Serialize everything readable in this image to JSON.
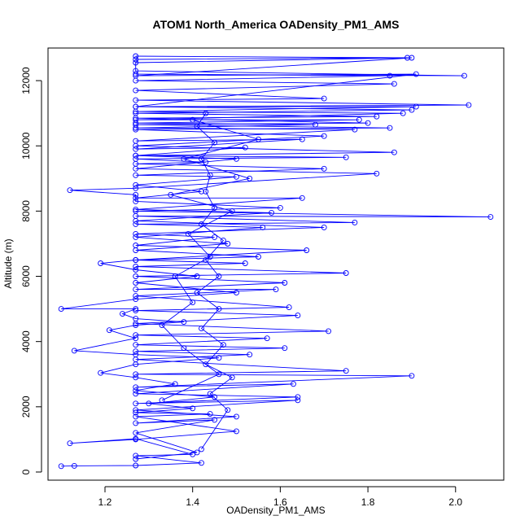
{
  "chart_data": {
    "type": "scatter",
    "title": "ATOM1 North_America OADensity_PM1_AMS",
    "xlabel": "OADensity_PM1_AMS",
    "ylabel": "Altitude (m)",
    "xlim": [
      1.07,
      2.11
    ],
    "ylim": [
      -250,
      13000
    ],
    "xticks": [
      "1.2",
      "1.4",
      "1.6",
      "1.8",
      "2.0"
    ],
    "xtick_values": [
      1.2,
      1.4,
      1.6,
      1.8,
      2.0
    ],
    "yticks": [
      "0",
      "2000",
      "4000",
      "6000",
      "8000",
      "10000",
      "12000"
    ],
    "ytick_values": [
      0,
      2000,
      4000,
      6000,
      8000,
      10000,
      12000
    ],
    "grid": false,
    "legend": "none",
    "color": "#0000ff",
    "marker": "open-circle",
    "connected": true,
    "series": [
      {
        "points": [
          [
            1.1,
            180
          ],
          [
            1.13,
            190
          ],
          [
            1.27,
            200
          ],
          [
            1.42,
            280
          ],
          [
            1.27,
            500
          ],
          [
            1.4,
            540
          ],
          [
            1.27,
            1020
          ],
          [
            1.12,
            880
          ],
          [
            1.27,
            1000
          ],
          [
            1.5,
            1250
          ],
          [
            1.27,
            1700
          ],
          [
            1.44,
            1780
          ],
          [
            1.27,
            1820
          ],
          [
            1.4,
            1950
          ],
          [
            1.3,
            2100
          ],
          [
            1.45,
            2300
          ],
          [
            1.27,
            2500
          ],
          [
            1.36,
            2700
          ],
          [
            1.27,
            2900
          ],
          [
            1.19,
            3040
          ],
          [
            1.27,
            3300
          ],
          [
            1.46,
            3500
          ],
          [
            1.27,
            3600
          ],
          [
            1.13,
            3720
          ],
          [
            1.27,
            4100
          ],
          [
            1.21,
            4350
          ],
          [
            1.27,
            4500
          ],
          [
            1.38,
            4600
          ],
          [
            1.27,
            4700
          ],
          [
            1.24,
            4850
          ],
          [
            1.27,
            5000
          ],
          [
            1.1,
            5000
          ],
          [
            1.27,
            5300
          ],
          [
            1.5,
            5500
          ],
          [
            1.27,
            5800
          ],
          [
            1.41,
            6000
          ],
          [
            1.27,
            6200
          ],
          [
            1.19,
            6400
          ],
          [
            1.27,
            6500
          ],
          [
            1.55,
            6600
          ],
          [
            1.27,
            6800
          ],
          [
            1.48,
            7000
          ],
          [
            1.27,
            7200
          ],
          [
            1.56,
            7500
          ],
          [
            1.27,
            7600
          ],
          [
            1.77,
            7650
          ],
          [
            1.27,
            7850
          ],
          [
            2.08,
            7820
          ],
          [
            1.27,
            8000
          ],
          [
            1.6,
            8100
          ],
          [
            1.27,
            8300
          ],
          [
            1.27,
            8500
          ],
          [
            1.12,
            8640
          ],
          [
            1.27,
            8700
          ],
          [
            1.82,
            9150
          ],
          [
            1.27,
            9300
          ],
          [
            1.5,
            9600
          ],
          [
            1.27,
            9700
          ],
          [
            1.86,
            9800
          ],
          [
            1.27,
            10000
          ],
          [
            1.7,
            10300
          ],
          [
            1.27,
            10500
          ],
          [
            1.85,
            10550
          ],
          [
            1.27,
            10650
          ],
          [
            1.8,
            10700
          ],
          [
            1.27,
            10850
          ],
          [
            1.82,
            10900
          ],
          [
            1.27,
            11000
          ],
          [
            1.9,
            11100
          ],
          [
            1.27,
            11200
          ],
          [
            2.03,
            11250
          ],
          [
            1.27,
            11400
          ],
          [
            1.7,
            11450
          ],
          [
            1.27,
            11700
          ],
          [
            1.86,
            11900
          ],
          [
            1.27,
            12000
          ],
          [
            1.85,
            12150
          ],
          [
            1.27,
            12200
          ],
          [
            2.02,
            12150
          ],
          [
            1.27,
            12300
          ],
          [
            1.27,
            12550
          ],
          [
            1.89,
            12700
          ],
          [
            1.27,
            12750
          ]
        ]
      },
      {
        "points": [
          [
            1.27,
            12650
          ],
          [
            1.9,
            12700
          ],
          [
            1.27,
            12150
          ],
          [
            1.91,
            12200
          ],
          [
            1.27,
            11200
          ],
          [
            1.91,
            11200
          ],
          [
            1.27,
            11050
          ],
          [
            1.88,
            11000
          ],
          [
            1.27,
            10800
          ],
          [
            1.78,
            10800
          ],
          [
            1.27,
            10700
          ],
          [
            1.68,
            10650
          ],
          [
            1.27,
            10550
          ],
          [
            1.77,
            10500
          ],
          [
            1.27,
            10150
          ],
          [
            1.65,
            10200
          ],
          [
            1.27,
            9900
          ],
          [
            1.52,
            9950
          ],
          [
            1.27,
            9700
          ],
          [
            1.75,
            9650
          ],
          [
            1.27,
            9600
          ],
          [
            1.43,
            9500
          ],
          [
            1.27,
            9450
          ],
          [
            1.7,
            9300
          ],
          [
            1.27,
            9100
          ],
          [
            1.5,
            9050
          ],
          [
            1.27,
            8800
          ],
          [
            1.42,
            8600
          ],
          [
            1.27,
            8400
          ],
          [
            1.65,
            8400
          ],
          [
            1.27,
            8050
          ],
          [
            1.58,
            7950
          ],
          [
            1.27,
            7700
          ],
          [
            1.7,
            7500
          ],
          [
            1.27,
            7300
          ],
          [
            1.45,
            7200
          ],
          [
            1.27,
            6950
          ],
          [
            1.66,
            6800
          ],
          [
            1.27,
            6500
          ],
          [
            1.52,
            6400
          ],
          [
            1.27,
            6300
          ],
          [
            1.75,
            6100
          ],
          [
            1.27,
            6000
          ],
          [
            1.61,
            5800
          ],
          [
            1.27,
            5600
          ],
          [
            1.59,
            5600
          ],
          [
            1.27,
            5400
          ],
          [
            1.62,
            5050
          ],
          [
            1.27,
            4950
          ],
          [
            1.64,
            4800
          ],
          [
            1.27,
            4550
          ],
          [
            1.71,
            4320
          ],
          [
            1.27,
            4200
          ],
          [
            1.57,
            4100
          ],
          [
            1.27,
            3900
          ],
          [
            1.61,
            3800
          ],
          [
            1.27,
            3700
          ],
          [
            1.53,
            3600
          ],
          [
            1.27,
            3450
          ],
          [
            1.75,
            3100
          ],
          [
            1.27,
            3000
          ],
          [
            1.9,
            2950
          ],
          [
            1.27,
            2600
          ],
          [
            1.63,
            2700
          ],
          [
            1.27,
            2400
          ],
          [
            1.64,
            2300
          ],
          [
            1.27,
            2100
          ],
          [
            1.64,
            2200
          ],
          [
            1.27,
            1900
          ],
          [
            1.5,
            1700
          ],
          [
            1.27,
            1500
          ],
          [
            1.45,
            1600
          ],
          [
            1.27,
            1200
          ],
          [
            1.41,
            600
          ],
          [
            1.27,
            400
          ]
        ]
      },
      {
        "points": [
          [
            1.42,
            700
          ],
          [
            1.48,
            1900
          ],
          [
            1.44,
            2400
          ],
          [
            1.49,
            2900
          ],
          [
            1.43,
            3300
          ],
          [
            1.47,
            3900
          ],
          [
            1.42,
            4400
          ],
          [
            1.46,
            5000
          ],
          [
            1.41,
            5500
          ],
          [
            1.46,
            6000
          ],
          [
            1.43,
            6500
          ],
          [
            1.47,
            7100
          ],
          [
            1.42,
            7600
          ],
          [
            1.45,
            8100
          ],
          [
            1.43,
            8600
          ],
          [
            1.44,
            9100
          ],
          [
            1.42,
            9600
          ],
          [
            1.45,
            10100
          ],
          [
            1.41,
            10600
          ],
          [
            1.43,
            11000
          ]
        ]
      },
      {
        "points": [
          [
            1.33,
            2200
          ],
          [
            1.46,
            3000
          ],
          [
            1.38,
            3800
          ],
          [
            1.33,
            4500
          ],
          [
            1.4,
            5200
          ],
          [
            1.36,
            6000
          ],
          [
            1.44,
            6600
          ],
          [
            1.39,
            7300
          ],
          [
            1.49,
            8000
          ],
          [
            1.35,
            8500
          ],
          [
            1.53,
            9000
          ],
          [
            1.38,
            9600
          ],
          [
            1.55,
            10200
          ],
          [
            1.4,
            10800
          ]
        ]
      }
    ]
  }
}
